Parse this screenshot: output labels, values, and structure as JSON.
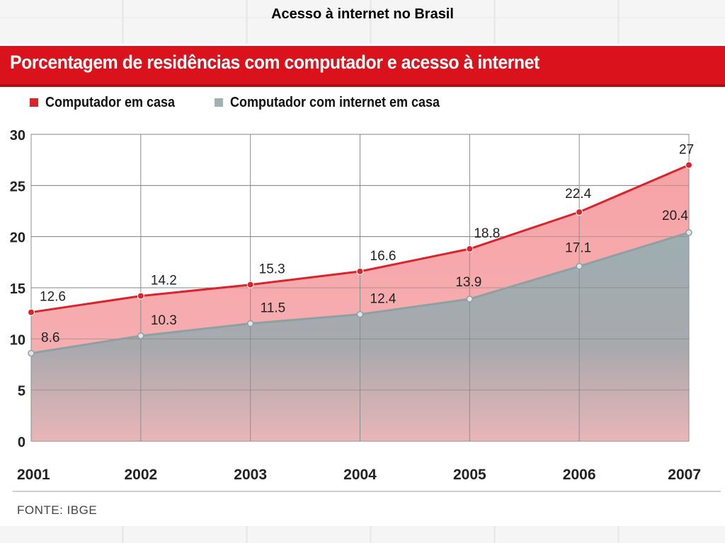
{
  "slide": {
    "title": "Acesso à internet no Brasil"
  },
  "banner": {
    "title": "Porcentagem de residências com computador e acesso à internet"
  },
  "legend": {
    "items": [
      {
        "label": "Computador em casa",
        "color": "#d9242b"
      },
      {
        "label": "Computador com internet em casa",
        "color": "#9fb1b3"
      }
    ]
  },
  "source": "FONTE: IBGE",
  "chart_data": {
    "type": "area",
    "categories": [
      "2001",
      "2002",
      "2003",
      "2004",
      "2005",
      "2006",
      "2007"
    ],
    "series": [
      {
        "name": "Computador em casa",
        "values": [
          12.6,
          14.2,
          15.3,
          16.6,
          18.8,
          22.4,
          27
        ],
        "labels": [
          "12.6",
          "14.2",
          "15.3",
          "16.6",
          "18.8",
          "22.4",
          "27"
        ],
        "color": "#d9242b",
        "fill": "#f7a9ab"
      },
      {
        "name": "Computador com internet em casa",
        "values": [
          8.6,
          10.3,
          11.5,
          12.4,
          13.9,
          17.1,
          20.4
        ],
        "labels": [
          "8.6",
          "10.3",
          "11.5",
          "12.4",
          "13.9",
          "17.1",
          "20.4"
        ],
        "color": "#8fa4a7",
        "fill": "#9fb1b3"
      }
    ],
    "yticks": [
      "0",
      "5",
      "10",
      "15",
      "20",
      "25",
      "30"
    ],
    "ylim": [
      0,
      30
    ],
    "grid": true,
    "legend_position": "top-left"
  }
}
